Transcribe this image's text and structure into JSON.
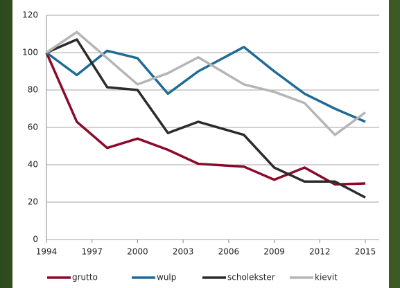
{
  "chart_data": {
    "type": "line",
    "x": [
      1994,
      1996,
      1998,
      2000,
      2002,
      2004,
      2007,
      2009,
      2011,
      2013,
      2015
    ],
    "series": [
      {
        "name": "grutto",
        "color": "#8b0a2a",
        "values": [
          100,
          63,
          49,
          54,
          48,
          40.5,
          39,
          32,
          38.5,
          29.5,
          30
        ]
      },
      {
        "name": "wulp",
        "color": "#1f6b96",
        "values": [
          100,
          88,
          101,
          97,
          78,
          90,
          103,
          90,
          78,
          70,
          63
        ]
      },
      {
        "name": "scholekster",
        "color": "#2b2b2b",
        "values": [
          100,
          107,
          81.5,
          80,
          57,
          63,
          56,
          38.5,
          31,
          31,
          22.5
        ]
      },
      {
        "name": "kievit",
        "color": "#b5b5b5",
        "values": [
          100,
          111,
          97,
          83,
          89,
          97.5,
          83,
          79,
          73,
          56,
          68
        ]
      }
    ],
    "xlim": [
      1994,
      2015
    ],
    "xticks": [
      1994,
      1997,
      2000,
      2003,
      2006,
      2009,
      2012,
      2015
    ],
    "ylim": [
      0,
      120
    ],
    "yticks": [
      0,
      20,
      40,
      60,
      80,
      100,
      120
    ],
    "grid": true,
    "legend": "bottom"
  }
}
